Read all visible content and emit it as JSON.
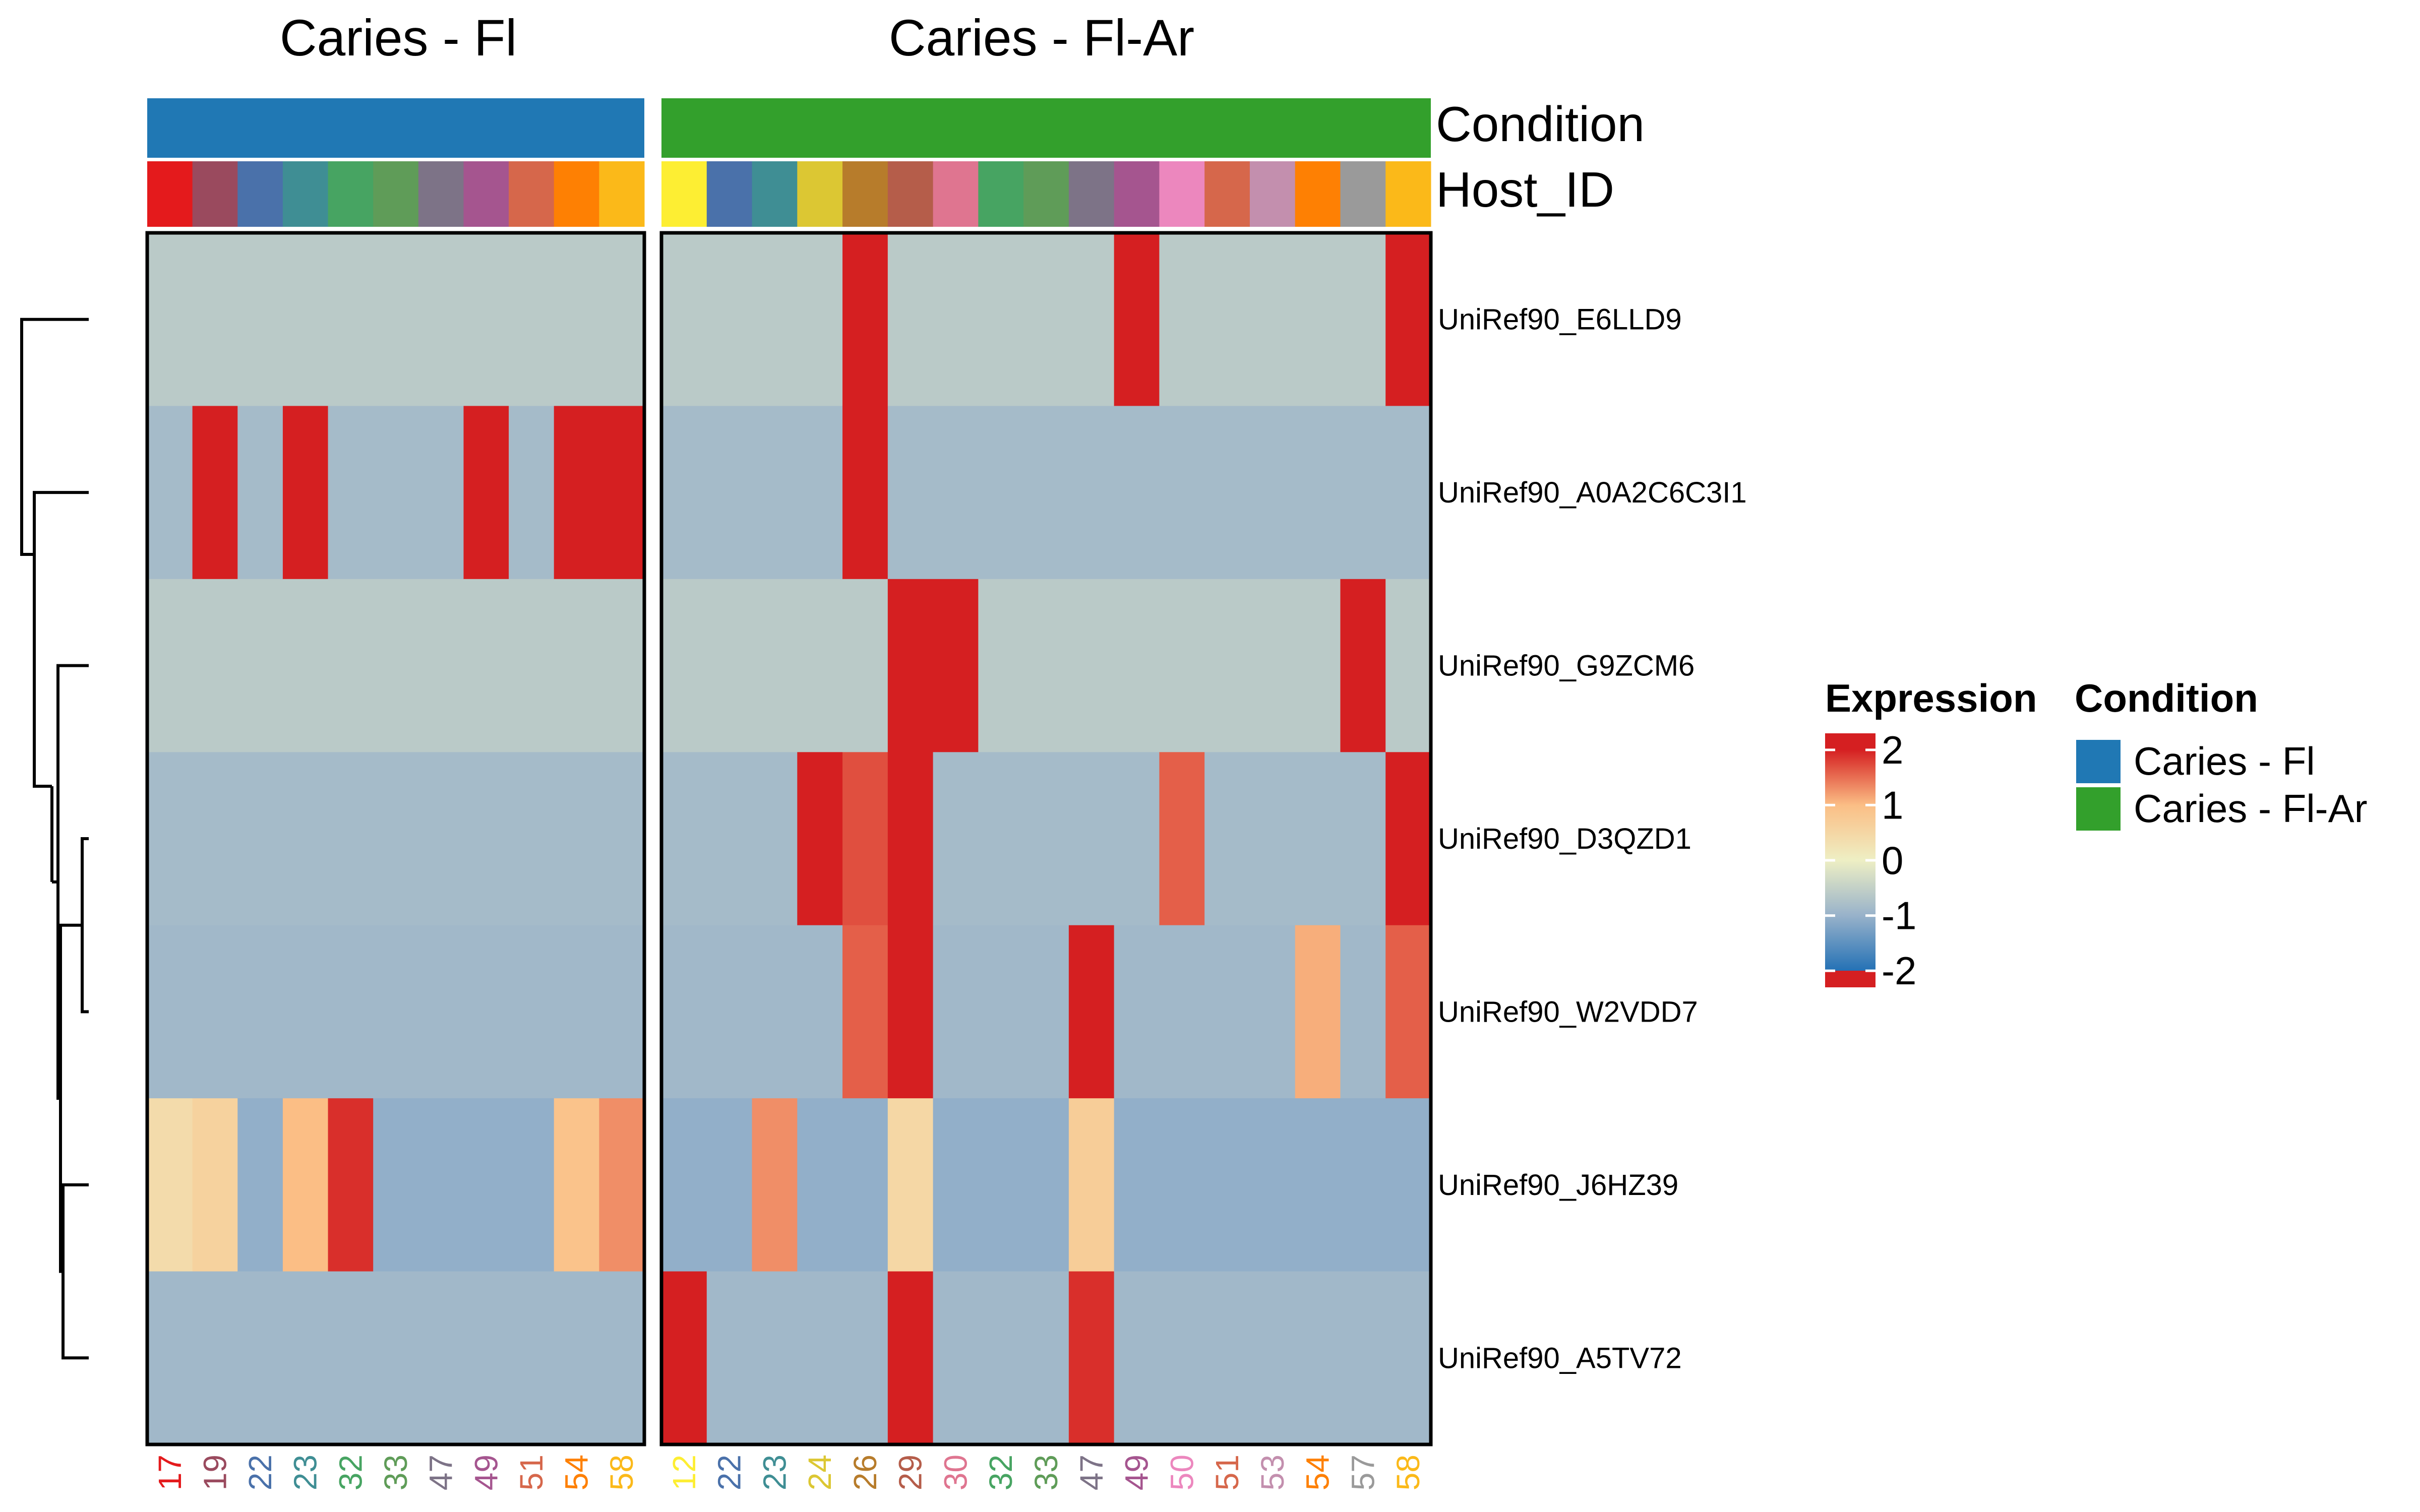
{
  "chart_data": {
    "type": "heatmap",
    "panels": [
      {
        "title": "Caries - Fl",
        "condition": "Caries - Fl",
        "host_ids": [
          "17",
          "19",
          "22",
          "23",
          "32",
          "33",
          "47",
          "49",
          "51",
          "54",
          "58"
        ]
      },
      {
        "title": "Caries - Fl-Ar",
        "condition": "Caries - Fl-Ar",
        "host_ids": [
          "12",
          "22",
          "23",
          "24",
          "26",
          "29",
          "30",
          "32",
          "33",
          "47",
          "49",
          "50",
          "51",
          "53",
          "54",
          "57",
          "58"
        ]
      }
    ],
    "rows": [
      "UniRef90_E6LLD9",
      "UniRef90_A0A2C6C3I1",
      "UniRef90_G9ZCM6",
      "UniRef90_D3QZD1",
      "UniRef90_W2VDD7",
      "UniRef90_J6HZ39",
      "UniRef90_A5TV72"
    ],
    "values": [
      [
        -0.6,
        -0.6,
        -0.6,
        -0.6,
        -0.6,
        -0.6,
        -0.6,
        -0.6,
        -0.6,
        -0.6,
        -0.6,
        -0.6,
        -0.6,
        -0.6,
        -0.6,
        2.2,
        -0.6,
        -0.6,
        -0.6,
        -0.6,
        -0.6,
        2.2,
        -0.6,
        -0.6,
        -0.6,
        -0.6,
        -0.6,
        2.2
      ],
      [
        -0.85,
        2.2,
        -0.85,
        2.2,
        -0.85,
        -0.85,
        -0.85,
        2.2,
        -0.85,
        2.2,
        2.2,
        -0.85,
        -0.85,
        -0.85,
        -0.85,
        2.2,
        -0.85,
        -0.85,
        -0.85,
        -0.85,
        -0.85,
        -0.85,
        -0.85,
        -0.85,
        -0.85,
        -0.85,
        -0.85,
        -0.85
      ],
      [
        -0.6,
        -0.6,
        -0.6,
        -0.6,
        -0.6,
        -0.6,
        -0.6,
        -0.6,
        -0.6,
        -0.6,
        -0.6,
        -0.6,
        -0.6,
        -0.6,
        -0.6,
        -0.6,
        2.2,
        2.2,
        -0.6,
        -0.6,
        -0.6,
        -0.6,
        -0.6,
        -0.6,
        -0.6,
        -0.6,
        2.2,
        -0.6
      ],
      [
        -0.85,
        -0.85,
        -0.85,
        -0.85,
        -0.85,
        -0.85,
        -0.85,
        -0.85,
        -0.85,
        -0.85,
        -0.85,
        -0.85,
        -0.85,
        -0.85,
        2.0,
        1.7,
        2.2,
        -0.85,
        -0.85,
        -0.85,
        -0.85,
        -0.85,
        1.6,
        -0.85,
        -0.85,
        -0.85,
        -0.85,
        2.2
      ],
      [
        -0.9,
        -0.9,
        -0.9,
        -0.9,
        -0.9,
        -0.9,
        -0.9,
        -0.9,
        -0.9,
        -0.9,
        -0.9,
        -0.9,
        -0.9,
        -0.9,
        -0.9,
        1.6,
        2.2,
        -0.9,
        -0.9,
        -0.9,
        2.2,
        -0.9,
        -0.9,
        -0.9,
        -0.9,
        1.1,
        -0.9,
        1.6
      ],
      [
        0.4,
        0.6,
        -1.05,
        1.0,
        1.9,
        -1.05,
        -1.05,
        -1.05,
        -1.05,
        0.9,
        1.3,
        -1.05,
        -1.05,
        1.3,
        -1.05,
        -1.05,
        0.5,
        -1.05,
        -1.05,
        -1.05,
        0.7,
        -1.05,
        -1.05,
        -1.05,
        -1.05,
        -1.05,
        -1.05,
        -1.05
      ],
      [
        -0.9,
        -0.9,
        -0.9,
        -0.9,
        -0.9,
        -0.9,
        -0.9,
        -0.9,
        -0.9,
        -0.9,
        -0.9,
        2.2,
        -0.9,
        -0.9,
        -0.9,
        -0.9,
        2.2,
        -0.9,
        -0.9,
        -0.9,
        1.9,
        -0.9,
        -0.9,
        -0.9,
        -0.9,
        -0.9,
        -0.9,
        -0.9
      ]
    ],
    "color_scale": {
      "name": "Expression",
      "breaks": [
        2,
        1,
        0,
        -1,
        -2
      ],
      "stops": [
        {
          "value": -2,
          "color": "#2471b5"
        },
        {
          "value": -1,
          "color": "#98b2ca"
        },
        {
          "value": 0,
          "color": "#eeefc4"
        },
        {
          "value": 1,
          "color": "#fbbe85"
        },
        {
          "value": 2,
          "color": "#d51f21"
        }
      ]
    },
    "annotations": {
      "condition": {
        "label": "Condition",
        "legend_title": "Condition",
        "levels": [
          {
            "name": "Caries - Fl",
            "color": "#2078b4"
          },
          {
            "name": "Caries - Fl-Ar",
            "color": "#33a02c"
          }
        ]
      },
      "host_id": {
        "label": "Host_ID",
        "colors": {
          "12": "#fdee33",
          "17": "#e41a1c",
          "19": "#9a4a5e",
          "22": "#4a71aa",
          "23": "#3f8e94",
          "24": "#dcc733",
          "26": "#b77c2b",
          "29": "#b55d4a",
          "30": "#df7590",
          "32": "#47a462",
          "33": "#5f9c58",
          "47": "#7d7387",
          "49": "#a5558f",
          "50": "#ec87be",
          "51": "#d6674b",
          "53": "#c38fae",
          "54": "#fe8003",
          "57": "#9a9a9a",
          "58": "#fbb919"
        }
      }
    },
    "row_dendrogram": true,
    "legend_placement": "right"
  }
}
